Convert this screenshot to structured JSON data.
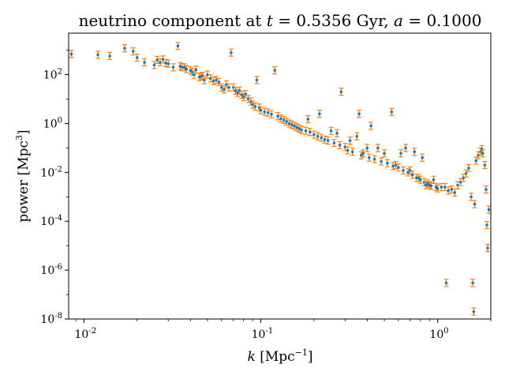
{
  "chart_data": {
    "type": "scatter",
    "title": "neutrino component at t = 0.5356 Gyr, a = 0.1000",
    "title_parts": {
      "prefix": "neutrino component at ",
      "t_symbol": "t",
      "eq1": " = 0.5356 Gyr, ",
      "a_symbol": "a",
      "eq2": " = 0.1000"
    },
    "xlabel": "k [Mpc⁻¹]",
    "xlabel_parts": {
      "symbol": "k",
      "unit": " [Mpc",
      "sup": "−1",
      "close": "]"
    },
    "ylabel": "power [Mpc³]",
    "ylabel_parts": {
      "text": "power [Mpc",
      "sup": "3",
      "close": "]"
    },
    "xscale": "log",
    "yscale": "log",
    "xlim": [
      0.0082,
      2.0
    ],
    "ylim": [
      1e-08,
      5000
    ],
    "xticks": [
      {
        "value": 0.01,
        "base": "10",
        "exp": "-2"
      },
      {
        "value": 0.1,
        "base": "10",
        "exp": "-1"
      },
      {
        "value": 1,
        "base": "10",
        "exp": "0"
      }
    ],
    "yticks": [
      {
        "value": 1e-08,
        "base": "10",
        "exp": "-8"
      },
      {
        "value": 1e-06,
        "base": "10",
        "exp": "-6"
      },
      {
        "value": 0.0001,
        "base": "10",
        "exp": "-4"
      },
      {
        "value": 0.01,
        "base": "10",
        "exp": "-2"
      },
      {
        "value": 1,
        "base": "10",
        "exp": "0"
      },
      {
        "value": 100,
        "base": "10",
        "exp": "2"
      }
    ],
    "grid": false,
    "colors": {
      "points": "#1f77b4",
      "errorbars": "#ff7f0e"
    },
    "series": [
      {
        "marker": "dot",
        "error_scale": 1.4,
        "points": [
          [
            0.0085,
            700
          ],
          [
            0.012,
            650
          ],
          [
            0.014,
            580
          ],
          [
            0.017,
            1200
          ],
          [
            0.019,
            900
          ],
          [
            0.02,
            500
          ],
          [
            0.022,
            320
          ],
          [
            0.025,
            250
          ],
          [
            0.026,
            400
          ],
          [
            0.027,
            320
          ],
          [
            0.028,
            420
          ],
          [
            0.029,
            300
          ],
          [
            0.03,
            280
          ],
          [
            0.032,
            200
          ],
          [
            0.034,
            1500
          ],
          [
            0.035,
            220
          ],
          [
            0.036,
            200
          ],
          [
            0.037,
            200
          ],
          [
            0.038,
            170
          ],
          [
            0.04,
            150
          ],
          [
            0.041,
            130
          ],
          [
            0.042,
            100
          ],
          [
            0.043,
            160
          ],
          [
            0.045,
            80
          ],
          [
            0.046,
            85
          ],
          [
            0.047,
            90
          ],
          [
            0.048,
            60
          ],
          [
            0.05,
            100
          ],
          [
            0.052,
            70
          ],
          [
            0.054,
            55
          ],
          [
            0.056,
            60
          ],
          [
            0.058,
            50
          ],
          [
            0.06,
            30
          ],
          [
            0.062,
            25
          ],
          [
            0.064,
            40
          ],
          [
            0.066,
            30
          ],
          [
            0.068,
            800
          ],
          [
            0.07,
            30
          ],
          [
            0.072,
            22
          ],
          [
            0.074,
            18
          ],
          [
            0.076,
            22
          ],
          [
            0.078,
            15
          ],
          [
            0.08,
            12
          ],
          [
            0.082,
            16
          ],
          [
            0.085,
            10
          ],
          [
            0.088,
            8
          ],
          [
            0.09,
            6
          ],
          [
            0.093,
            5
          ],
          [
            0.095,
            60
          ],
          [
            0.098,
            4.5
          ],
          [
            0.1,
            3.5
          ],
          [
            0.105,
            3
          ],
          [
            0.11,
            2.8
          ],
          [
            0.115,
            2.4
          ],
          [
            0.12,
            150
          ],
          [
            0.125,
            2
          ],
          [
            0.13,
            1.6
          ],
          [
            0.135,
            1.4
          ],
          [
            0.14,
            1.2
          ],
          [
            0.145,
            1.0
          ],
          [
            0.15,
            0.9
          ],
          [
            0.155,
            0.8
          ],
          [
            0.16,
            0.7
          ],
          [
            0.165,
            0.62
          ],
          [
            0.17,
            0.55
          ],
          [
            0.18,
            0.5
          ],
          [
            0.185,
            1.5
          ],
          [
            0.19,
            0.45
          ],
          [
            0.2,
            0.35
          ],
          [
            0.21,
            0.3
          ],
          [
            0.215,
            2.5
          ],
          [
            0.22,
            0.26
          ],
          [
            0.23,
            0.22
          ],
          [
            0.24,
            0.2
          ],
          [
            0.25,
            0.5
          ],
          [
            0.26,
            0.16
          ],
          [
            0.27,
            0.4
          ],
          [
            0.28,
            0.13
          ],
          [
            0.285,
            20
          ],
          [
            0.3,
            0.11
          ],
          [
            0.31,
            0.08
          ],
          [
            0.32,
            0.2
          ],
          [
            0.33,
            0.07
          ],
          [
            0.35,
            0.3
          ],
          [
            0.36,
            2.5
          ],
          [
            0.37,
            0.05
          ],
          [
            0.38,
            0.06
          ],
          [
            0.4,
            0.1
          ],
          [
            0.41,
            0.04
          ],
          [
            0.42,
            0.8
          ],
          [
            0.44,
            0.035
          ],
          [
            0.46,
            0.1
          ],
          [
            0.48,
            0.028
          ],
          [
            0.5,
            0.06
          ],
          [
            0.52,
            0.024
          ],
          [
            0.55,
            3
          ],
          [
            0.56,
            0.018
          ],
          [
            0.58,
            0.02
          ],
          [
            0.6,
            0.016
          ],
          [
            0.62,
            0.06
          ],
          [
            0.64,
            0.012
          ],
          [
            0.66,
            0.1
          ],
          [
            0.68,
            0.01
          ],
          [
            0.7,
            0.012
          ],
          [
            0.72,
            0.008
          ],
          [
            0.74,
            0.07
          ],
          [
            0.76,
            0.006
          ],
          [
            0.78,
            0.006
          ],
          [
            0.8,
            0.005
          ],
          [
            0.82,
            0.04
          ],
          [
            0.84,
            0.004
          ],
          [
            0.86,
            0.003
          ],
          [
            0.88,
            0.0035
          ],
          [
            0.9,
            0.003
          ],
          [
            0.92,
            0.0028
          ],
          [
            0.95,
            0.005
          ],
          [
            0.98,
            0.0025
          ],
          [
            1.0,
            0.0022
          ],
          [
            1.05,
            0.0025
          ],
          [
            1.1,
            0.0025
          ],
          [
            1.12,
            3e-07
          ],
          [
            1.15,
            0.0018
          ],
          [
            1.2,
            0.002
          ],
          [
            1.25,
            0.0015
          ],
          [
            1.3,
            0.003
          ],
          [
            1.35,
            0.004
          ],
          [
            1.4,
            0.006
          ],
          [
            1.45,
            0.009
          ],
          [
            1.5,
            0.015
          ],
          [
            1.55,
            0.001
          ],
          [
            1.58,
            3e-07
          ],
          [
            1.6,
            2e-08
          ],
          [
            1.62,
            0.0005
          ],
          [
            1.65,
            0.03
          ],
          [
            1.7,
            0.05
          ],
          [
            1.75,
            0.07
          ],
          [
            1.78,
            0.09
          ],
          [
            1.8,
            0.06
          ],
          [
            1.85,
            0.02
          ],
          [
            1.88,
            0.002
          ],
          [
            1.9,
            7e-05
          ],
          [
            1.92,
            8e-06
          ],
          [
            1.95,
            0.0003
          ]
        ]
      }
    ]
  }
}
